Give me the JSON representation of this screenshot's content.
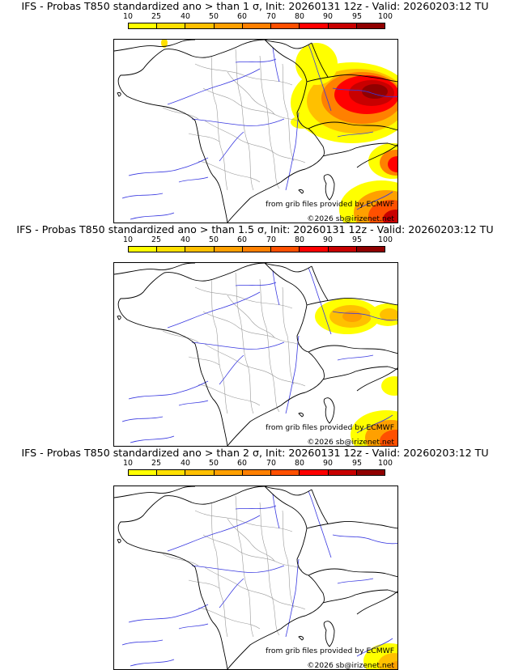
{
  "legend": {
    "ticks": [
      "10",
      "25",
      "40",
      "50",
      "60",
      "70",
      "80",
      "90",
      "95",
      "100"
    ],
    "colors": [
      "#ffff00",
      "#ffe000",
      "#ffc000",
      "#ffa000",
      "#ff8000",
      "#ff5000",
      "#ff0000",
      "#c80000",
      "#900000",
      "#640000"
    ]
  },
  "source_credit": "from grib files provided by ECMWF",
  "copyright": "©2026 sb@irizenet.net",
  "panels": [
    {
      "title": "IFS - Probas T850  standardized ano > than 1 σ, Init: 20260131 12z - Valid: 20260203:12 TU"
    },
    {
      "title": "IFS - Probas T850  standardized ano > than 1.5 σ, Init: 20260131 12z - Valid: 20260203:12 TU"
    },
    {
      "title": "IFS - Probas T850  standardized ano > than 2 σ, Init: 20260131 12z - Valid: 20260203:12 TU"
    }
  ]
}
